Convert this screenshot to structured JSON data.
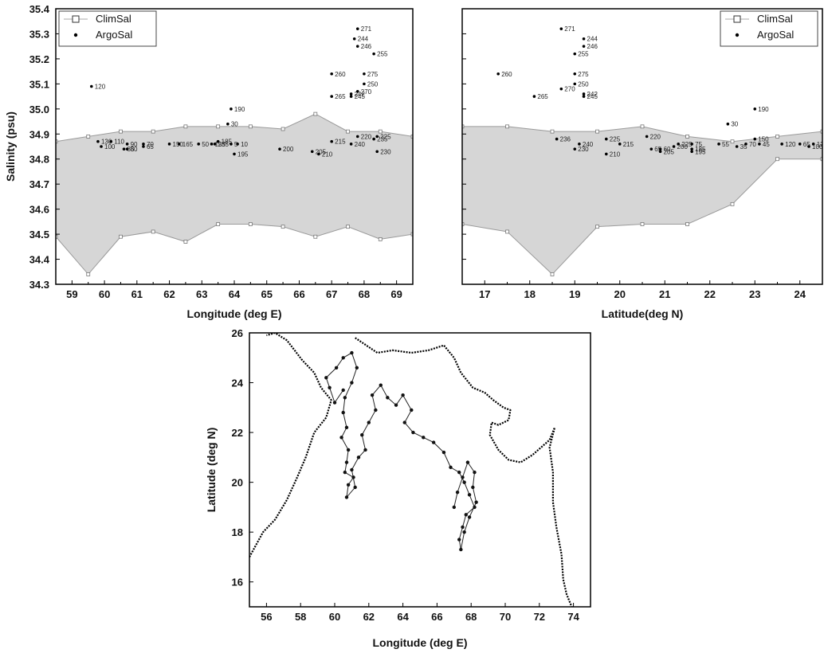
{
  "chart_data": [
    {
      "type": "area",
      "xlabel": "Longitude (deg E)",
      "ylabel": "Salinity (psu)",
      "xlim": [
        58.5,
        69.5
      ],
      "ylim": [
        34.3,
        35.4
      ],
      "xticks": [
        "59",
        "60",
        "61",
        "62",
        "63",
        "64",
        "65",
        "66",
        "67",
        "68",
        "69"
      ],
      "yticks": [
        "34.3",
        "34.4",
        "34.5",
        "34.6",
        "34.7",
        "34.8",
        "34.9",
        "35.0",
        "35.1",
        "35.2",
        "35.3",
        "35.4"
      ],
      "legend": {
        "position": "top-left",
        "entries": [
          "ClimSal",
          "ArgoSal"
        ]
      },
      "series": [
        {
          "name": "ClimSal",
          "kind": "band",
          "x": [
            58.5,
            59.5,
            60.5,
            61.5,
            62.5,
            63.5,
            64.5,
            65.5,
            66.5,
            67.5,
            68.5,
            69.5
          ],
          "upper": [
            34.87,
            34.89,
            34.91,
            34.91,
            34.93,
            34.93,
            34.93,
            34.92,
            34.98,
            34.91,
            34.91,
            34.89
          ],
          "lower": [
            34.49,
            34.34,
            34.49,
            34.51,
            34.47,
            34.54,
            34.54,
            34.53,
            34.49,
            34.53,
            34.48,
            34.5
          ]
        },
        {
          "name": "ArgoSal",
          "kind": "points",
          "points": [
            {
              "x": 59.6,
              "y": 35.09,
              "label": "120"
            },
            {
              "x": 59.8,
              "y": 34.87,
              "label": "130"
            },
            {
              "x": 59.9,
              "y": 34.85,
              "label": "100"
            },
            {
              "x": 60.2,
              "y": 34.87,
              "label": "110"
            },
            {
              "x": 60.7,
              "y": 34.86,
              "label": "90"
            },
            {
              "x": 60.6,
              "y": 34.84,
              "label": "85"
            },
            {
              "x": 60.7,
              "y": 34.84,
              "label": "80"
            },
            {
              "x": 61.2,
              "y": 34.86,
              "label": "70"
            },
            {
              "x": 61.2,
              "y": 34.85,
              "label": "65"
            },
            {
              "x": 62.0,
              "y": 34.86,
              "label": "150"
            },
            {
              "x": 62.3,
              "y": 34.86,
              "label": "165"
            },
            {
              "x": 62.9,
              "y": 34.86,
              "label": "50"
            },
            {
              "x": 63.3,
              "y": 34.86,
              "label": "155"
            },
            {
              "x": 63.5,
              "y": 34.87,
              "label": "185"
            },
            {
              "x": 63.4,
              "y": 34.86,
              "label": "235"
            },
            {
              "x": 63.9,
              "y": 35.0,
              "label": "190"
            },
            {
              "x": 63.8,
              "y": 34.94,
              "label": "30"
            },
            {
              "x": 64.1,
              "y": 34.86,
              "label": "10"
            },
            {
              "x": 63.9,
              "y": 34.86,
              "label": "5"
            },
            {
              "x": 64.0,
              "y": 34.82,
              "label": "195"
            },
            {
              "x": 65.4,
              "y": 34.84,
              "label": "200"
            },
            {
              "x": 66.4,
              "y": 34.83,
              "label": "205"
            },
            {
              "x": 66.6,
              "y": 34.82,
              "label": "210"
            },
            {
              "x": 67.0,
              "y": 34.87,
              "label": "215"
            },
            {
              "x": 67.8,
              "y": 34.89,
              "label": "220"
            },
            {
              "x": 67.6,
              "y": 34.86,
              "label": "240"
            },
            {
              "x": 68.4,
              "y": 34.83,
              "label": "230"
            },
            {
              "x": 68.4,
              "y": 34.89,
              "label": "225"
            },
            {
              "x": 68.3,
              "y": 34.88,
              "label": "235"
            },
            {
              "x": 67.6,
              "y": 35.05,
              "label": "245"
            },
            {
              "x": 67.0,
              "y": 35.05,
              "label": "265"
            },
            {
              "x": 67.6,
              "y": 35.06,
              "label": "242"
            },
            {
              "x": 67.8,
              "y": 35.07,
              "label": "270"
            },
            {
              "x": 68.0,
              "y": 35.1,
              "label": "250"
            },
            {
              "x": 68.0,
              "y": 35.14,
              "label": "275"
            },
            {
              "x": 67.0,
              "y": 35.14,
              "label": "260"
            },
            {
              "x": 68.3,
              "y": 35.22,
              "label": "255"
            },
            {
              "x": 67.8,
              "y": 35.25,
              "label": "246"
            },
            {
              "x": 67.7,
              "y": 35.28,
              "label": "244"
            },
            {
              "x": 67.8,
              "y": 35.32,
              "label": "271"
            }
          ]
        }
      ]
    },
    {
      "type": "area",
      "xlabel": "Latitude(deg N)",
      "ylabel": "",
      "xlim": [
        16.5,
        24.5
      ],
      "ylim": [
        34.3,
        35.4
      ],
      "xticks": [
        "17",
        "18",
        "19",
        "20",
        "21",
        "22",
        "23",
        "24"
      ],
      "yticks": [],
      "legend": {
        "position": "top-right",
        "entries": [
          "ClimSal",
          "ArgoSal"
        ]
      },
      "series": [
        {
          "name": "ClimSal",
          "kind": "band",
          "x": [
            16.5,
            17.5,
            18.5,
            19.5,
            20.5,
            21.5,
            22.5,
            23.5,
            24.5
          ],
          "upper": [
            34.93,
            34.93,
            34.91,
            34.91,
            34.93,
            34.89,
            34.87,
            34.89,
            34.91
          ],
          "lower": [
            34.54,
            34.51,
            34.34,
            34.53,
            34.54,
            34.54,
            34.62,
            34.8,
            34.8
          ]
        },
        {
          "name": "ArgoSal",
          "kind": "points",
          "points": [
            {
              "x": 17.3,
              "y": 35.14,
              "label": "260"
            },
            {
              "x": 18.1,
              "y": 35.05,
              "label": "265"
            },
            {
              "x": 18.7,
              "y": 35.32,
              "label": "271"
            },
            {
              "x": 19.2,
              "y": 35.28,
              "label": "244"
            },
            {
              "x": 19.2,
              "y": 35.25,
              "label": "246"
            },
            {
              "x": 19.0,
              "y": 35.22,
              "label": "255"
            },
            {
              "x": 19.0,
              "y": 35.14,
              "label": "275"
            },
            {
              "x": 19.0,
              "y": 35.1,
              "label": "250"
            },
            {
              "x": 18.7,
              "y": 35.08,
              "label": "270"
            },
            {
              "x": 19.2,
              "y": 35.06,
              "label": "242"
            },
            {
              "x": 19.2,
              "y": 35.05,
              "label": "245"
            },
            {
              "x": 18.6,
              "y": 34.88,
              "label": "236"
            },
            {
              "x": 19.1,
              "y": 34.86,
              "label": "240"
            },
            {
              "x": 19.0,
              "y": 34.84,
              "label": "230"
            },
            {
              "x": 19.7,
              "y": 34.88,
              "label": "225"
            },
            {
              "x": 20.0,
              "y": 34.86,
              "label": "215"
            },
            {
              "x": 19.7,
              "y": 34.82,
              "label": "210"
            },
            {
              "x": 20.6,
              "y": 34.89,
              "label": "220"
            },
            {
              "x": 20.7,
              "y": 34.84,
              "label": "65"
            },
            {
              "x": 20.9,
              "y": 34.84,
              "label": "60"
            },
            {
              "x": 20.9,
              "y": 34.83,
              "label": "205"
            },
            {
              "x": 21.2,
              "y": 34.85,
              "label": "200"
            },
            {
              "x": 21.3,
              "y": 34.86,
              "label": "225"
            },
            {
              "x": 21.6,
              "y": 34.86,
              "label": "75"
            },
            {
              "x": 21.6,
              "y": 34.84,
              "label": "185"
            },
            {
              "x": 21.6,
              "y": 34.83,
              "label": "195"
            },
            {
              "x": 22.2,
              "y": 34.86,
              "label": "55"
            },
            {
              "x": 22.4,
              "y": 34.94,
              "label": "30"
            },
            {
              "x": 23.0,
              "y": 35.0,
              "label": "190"
            },
            {
              "x": 22.6,
              "y": 34.85,
              "label": "35"
            },
            {
              "x": 22.8,
              "y": 34.86,
              "label": "70"
            },
            {
              "x": 23.1,
              "y": 34.86,
              "label": "45"
            },
            {
              "x": 23.0,
              "y": 34.88,
              "label": "150"
            },
            {
              "x": 23.6,
              "y": 34.86,
              "label": "120"
            },
            {
              "x": 24.0,
              "y": 34.86,
              "label": "65"
            },
            {
              "x": 24.2,
              "y": 34.85,
              "label": "100"
            },
            {
              "x": 24.3,
              "y": 34.86,
              "label": "125"
            }
          ]
        }
      ]
    },
    {
      "type": "scatter",
      "xlabel": "Longitude (deg E)",
      "ylabel": "Latitude (deg N)",
      "xlim": [
        55,
        75
      ],
      "ylim": [
        15,
        26
      ],
      "xticks": [
        "56",
        "58",
        "60",
        "62",
        "64",
        "66",
        "68",
        "70",
        "72",
        "74"
      ],
      "yticks": [
        "16",
        "18",
        "20",
        "22",
        "24",
        "26"
      ],
      "series": [
        {
          "name": "",
          "kind": "coastline",
          "points": [
            [
              55.0,
              17.0
            ],
            [
              55.8,
              18.0
            ],
            [
              56.5,
              18.5
            ],
            [
              57.2,
              19.3
            ],
            [
              57.8,
              20.2
            ],
            [
              58.3,
              21.0
            ],
            [
              58.8,
              22.0
            ],
            [
              59.5,
              22.6
            ],
            [
              59.8,
              23.3
            ],
            [
              59.2,
              23.8
            ],
            [
              58.8,
              24.4
            ],
            [
              58.1,
              24.9
            ],
            [
              57.2,
              25.7
            ],
            [
              56.5,
              26.0
            ],
            [
              56.0,
              25.9
            ]
          ]
        },
        {
          "name": "",
          "kind": "coastline",
          "points": [
            [
              61.2,
              25.8
            ],
            [
              62.5,
              25.2
            ],
            [
              63.4,
              25.3
            ],
            [
              64.5,
              25.2
            ],
            [
              65.5,
              25.3
            ],
            [
              66.4,
              25.5
            ],
            [
              67.0,
              25.0
            ],
            [
              67.4,
              24.4
            ],
            [
              68.1,
              23.8
            ],
            [
              68.8,
              23.6
            ],
            [
              69.3,
              23.3
            ],
            [
              69.9,
              23.0
            ],
            [
              70.3,
              22.9
            ],
            [
              70.2,
              22.5
            ],
            [
              69.6,
              22.3
            ],
            [
              69.2,
              22.4
            ],
            [
              69.1,
              21.9
            ],
            [
              69.6,
              21.3
            ],
            [
              70.2,
              20.9
            ],
            [
              70.9,
              20.8
            ],
            [
              71.6,
              21.1
            ],
            [
              72.1,
              21.4
            ],
            [
              72.6,
              21.7
            ],
            [
              72.9,
              22.2
            ],
            [
              72.6,
              21.4
            ],
            [
              72.8,
              20.4
            ],
            [
              72.8,
              19.2
            ],
            [
              73.0,
              18.2
            ],
            [
              73.3,
              17.1
            ],
            [
              73.4,
              16.1
            ],
            [
              73.6,
              15.5
            ],
            [
              73.9,
              15.0
            ]
          ]
        },
        {
          "name": "",
          "kind": "track",
          "points": [
            [
              60.5,
              23.7
            ],
            [
              60.0,
              23.2
            ],
            [
              59.7,
              23.8
            ],
            [
              59.5,
              24.2
            ],
            [
              60.1,
              24.6
            ],
            [
              60.5,
              25.0
            ],
            [
              61.0,
              25.2
            ],
            [
              61.3,
              24.6
            ],
            [
              61.0,
              24.0
            ],
            [
              60.6,
              23.4
            ],
            [
              60.5,
              22.8
            ],
            [
              60.7,
              22.2
            ],
            [
              60.4,
              21.8
            ],
            [
              60.8,
              21.3
            ],
            [
              60.7,
              20.8
            ],
            [
              60.6,
              20.4
            ],
            [
              61.1,
              20.2
            ],
            [
              60.8,
              19.9
            ],
            [
              60.7,
              19.4
            ],
            [
              61.2,
              19.8
            ],
            [
              61.0,
              20.5
            ],
            [
              61.4,
              21.0
            ],
            [
              61.8,
              21.3
            ],
            [
              61.6,
              21.9
            ],
            [
              62.0,
              22.4
            ],
            [
              62.4,
              22.9
            ],
            [
              62.2,
              23.5
            ],
            [
              62.7,
              23.9
            ],
            [
              63.1,
              23.4
            ],
            [
              63.6,
              23.1
            ],
            [
              64.0,
              23.5
            ],
            [
              64.5,
              22.9
            ],
            [
              64.1,
              22.4
            ],
            [
              64.6,
              22.0
            ],
            [
              65.2,
              21.8
            ],
            [
              65.8,
              21.6
            ],
            [
              66.4,
              21.2
            ],
            [
              66.8,
              20.6
            ],
            [
              67.3,
              20.4
            ],
            [
              67.6,
              20.0
            ],
            [
              67.9,
              19.5
            ],
            [
              68.2,
              19.0
            ],
            [
              67.7,
              18.7
            ],
            [
              67.5,
              18.2
            ],
            [
              67.3,
              17.7
            ],
            [
              67.4,
              17.3
            ],
            [
              67.6,
              18.0
            ],
            [
              67.9,
              18.6
            ],
            [
              68.3,
              19.2
            ],
            [
              68.1,
              19.8
            ],
            [
              68.2,
              20.4
            ],
            [
              67.8,
              20.8
            ],
            [
              67.5,
              20.2
            ],
            [
              67.2,
              19.6
            ],
            [
              67.0,
              19.0
            ]
          ]
        }
      ]
    }
  ]
}
